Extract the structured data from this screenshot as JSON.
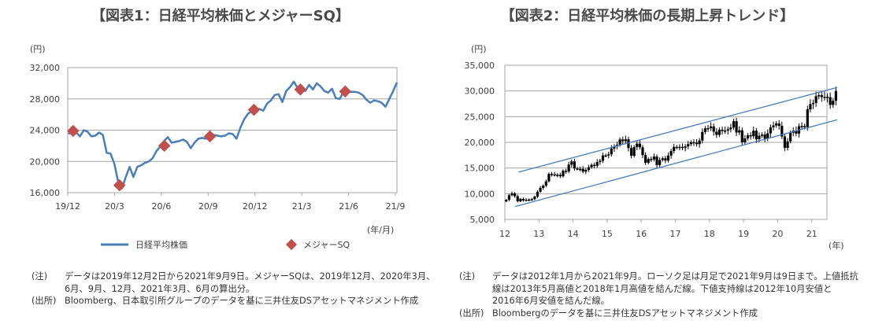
{
  "chart_data": [
    {
      "type": "line",
      "title": "【図表1：日経平均株価とメジャーSQ】",
      "ylabel": "(円)",
      "xlabel": "(年/月)",
      "ylim": [
        16000,
        32000
      ],
      "yticks": [
        "32,000",
        "28,000",
        "24,000",
        "20,000",
        "16,000"
      ],
      "ytick_values": [
        32000,
        28000,
        24000,
        20000,
        16000
      ],
      "xticks": [
        "19/12",
        "20/3",
        "20/6",
        "20/9",
        "20/12",
        "21/3",
        "21/6",
        "21/9"
      ],
      "x_range_months": [
        0,
        21.3
      ],
      "grid": true,
      "legend_position": "bottom",
      "series": [
        {
          "name": "日経平均株価",
          "color": "#4a7ebb",
          "values": [
            23500,
            23900,
            23700,
            23200,
            24000,
            23800,
            23200,
            23300,
            23700,
            23400,
            21100,
            21000,
            19700,
            17400,
            16550,
            18000,
            19300,
            18000,
            19300,
            19500,
            19800,
            20000,
            20400,
            21300,
            21900,
            22600,
            23100,
            22400,
            22500,
            22600,
            22800,
            22500,
            21700,
            22400,
            22900,
            23000,
            22900,
            23300,
            23400,
            23300,
            23200,
            23300,
            23600,
            23500,
            22900,
            24300,
            25400,
            26100,
            26400,
            26800,
            26700,
            26500,
            27400,
            27800,
            28500,
            28600,
            27600,
            29000,
            29500,
            30200,
            29400,
            29700,
            29000,
            29800,
            29200,
            30000,
            29600,
            29000,
            28800,
            29300,
            28100,
            28000,
            28900,
            29000,
            28900,
            28900,
            28800,
            28500,
            27900,
            27500,
            27800,
            27700,
            27500,
            27000,
            28000,
            29000,
            30100
          ]
        },
        {
          "name": "メジャーSQ",
          "color": "#c0504d",
          "x_months": [
            0.35,
            3.35,
            6.25,
            9.2,
            12.05,
            15.05,
            17.95
          ],
          "values": [
            23900,
            16950,
            22000,
            23200,
            26600,
            29200,
            28950
          ]
        }
      ]
    },
    {
      "type": "candlestick",
      "title": "【図表2：日経平均株価の長期上昇トレンド】",
      "ylabel": "(円)",
      "xlabel": "(年)",
      "ylim": [
        5000,
        35000
      ],
      "yticks": [
        "35,000",
        "30,000",
        "25,000",
        "20,000",
        "15,000",
        "10,000",
        "5,000"
      ],
      "ytick_values": [
        35000,
        30000,
        25000,
        20000,
        15000,
        10000,
        5000
      ],
      "xticks": [
        "12",
        "13",
        "14",
        "15",
        "16",
        "17",
        "18",
        "19",
        "20",
        "21"
      ],
      "x_range_years": [
        2012,
        2021.75
      ],
      "grid": true,
      "start_open": 8500,
      "monthly_close": [
        8800,
        9700,
        10080,
        9520,
        8540,
        9000,
        8700,
        8840,
        8870,
        8930,
        9450,
        10400,
        11140,
        11560,
        12400,
        13860,
        13770,
        13680,
        13670,
        13390,
        14460,
        14330,
        15660,
        16290,
        14910,
        14840,
        14830,
        14300,
        14630,
        15160,
        15620,
        15420,
        16170,
        16410,
        17460,
        17450,
        17670,
        18800,
        19200,
        19520,
        20560,
        20240,
        20590,
        18890,
        17390,
        19080,
        19750,
        19030,
        17520,
        16030,
        16760,
        16670,
        17230,
        15580,
        16570,
        16890,
        16450,
        17430,
        18310,
        19110,
        19040,
        19120,
        18910,
        19200,
        19650,
        20030,
        19930,
        19650,
        20360,
        22010,
        22720,
        22760,
        23100,
        22070,
        21450,
        22470,
        22200,
        22300,
        22550,
        22870,
        24120,
        21920,
        22350,
        20010,
        20770,
        21390,
        21200,
        22260,
        20600,
        21280,
        21520,
        20700,
        21750,
        22930,
        23290,
        23660,
        23200,
        21140,
        18920,
        20190,
        21880,
        22290,
        21710,
        23140,
        23180,
        22980,
        26430,
        27440,
        27660,
        28970,
        29180,
        28810,
        28860,
        28790,
        27280,
        28090,
        30000
      ],
      "trendlines": [
        {
          "name": "上値抵抗線",
          "color": "#4a7ebb",
          "from": [
            2012.4,
            14200
          ],
          "to": [
            2021.75,
            30700
          ]
        },
        {
          "name": "下値支持線",
          "color": "#4a7ebb",
          "from": [
            2012.3,
            7500
          ],
          "to": [
            2021.75,
            24400
          ]
        }
      ]
    }
  ],
  "notes1": {
    "note_label": "(注)",
    "note_text": "データは2019年12月2日から2021年9月9日。メジャーSQは、2019年12月、2020年3月、\n6月、9月、12月、2021年3月、6月の算出分。",
    "source_label": "(出所)",
    "source_text": "Bloomberg、日本取引所グループのデータを基に三井住友DSアセットマネジメント作成"
  },
  "notes2": {
    "note_label": "(注)",
    "note_text": "データは2012年1月から2021年9月。ローソク足は月足で2021年9月は9日まで。上値抵抗\n線は2013年5月高値と2018年1月高値を結んだ線。下値支持線は2012年10月安値と\n2016年6月安値を結んだ線。",
    "source_label": "(出所)",
    "source_text": "Bloombergのデータを基に三井住友DSアセットマネジメント作成"
  }
}
